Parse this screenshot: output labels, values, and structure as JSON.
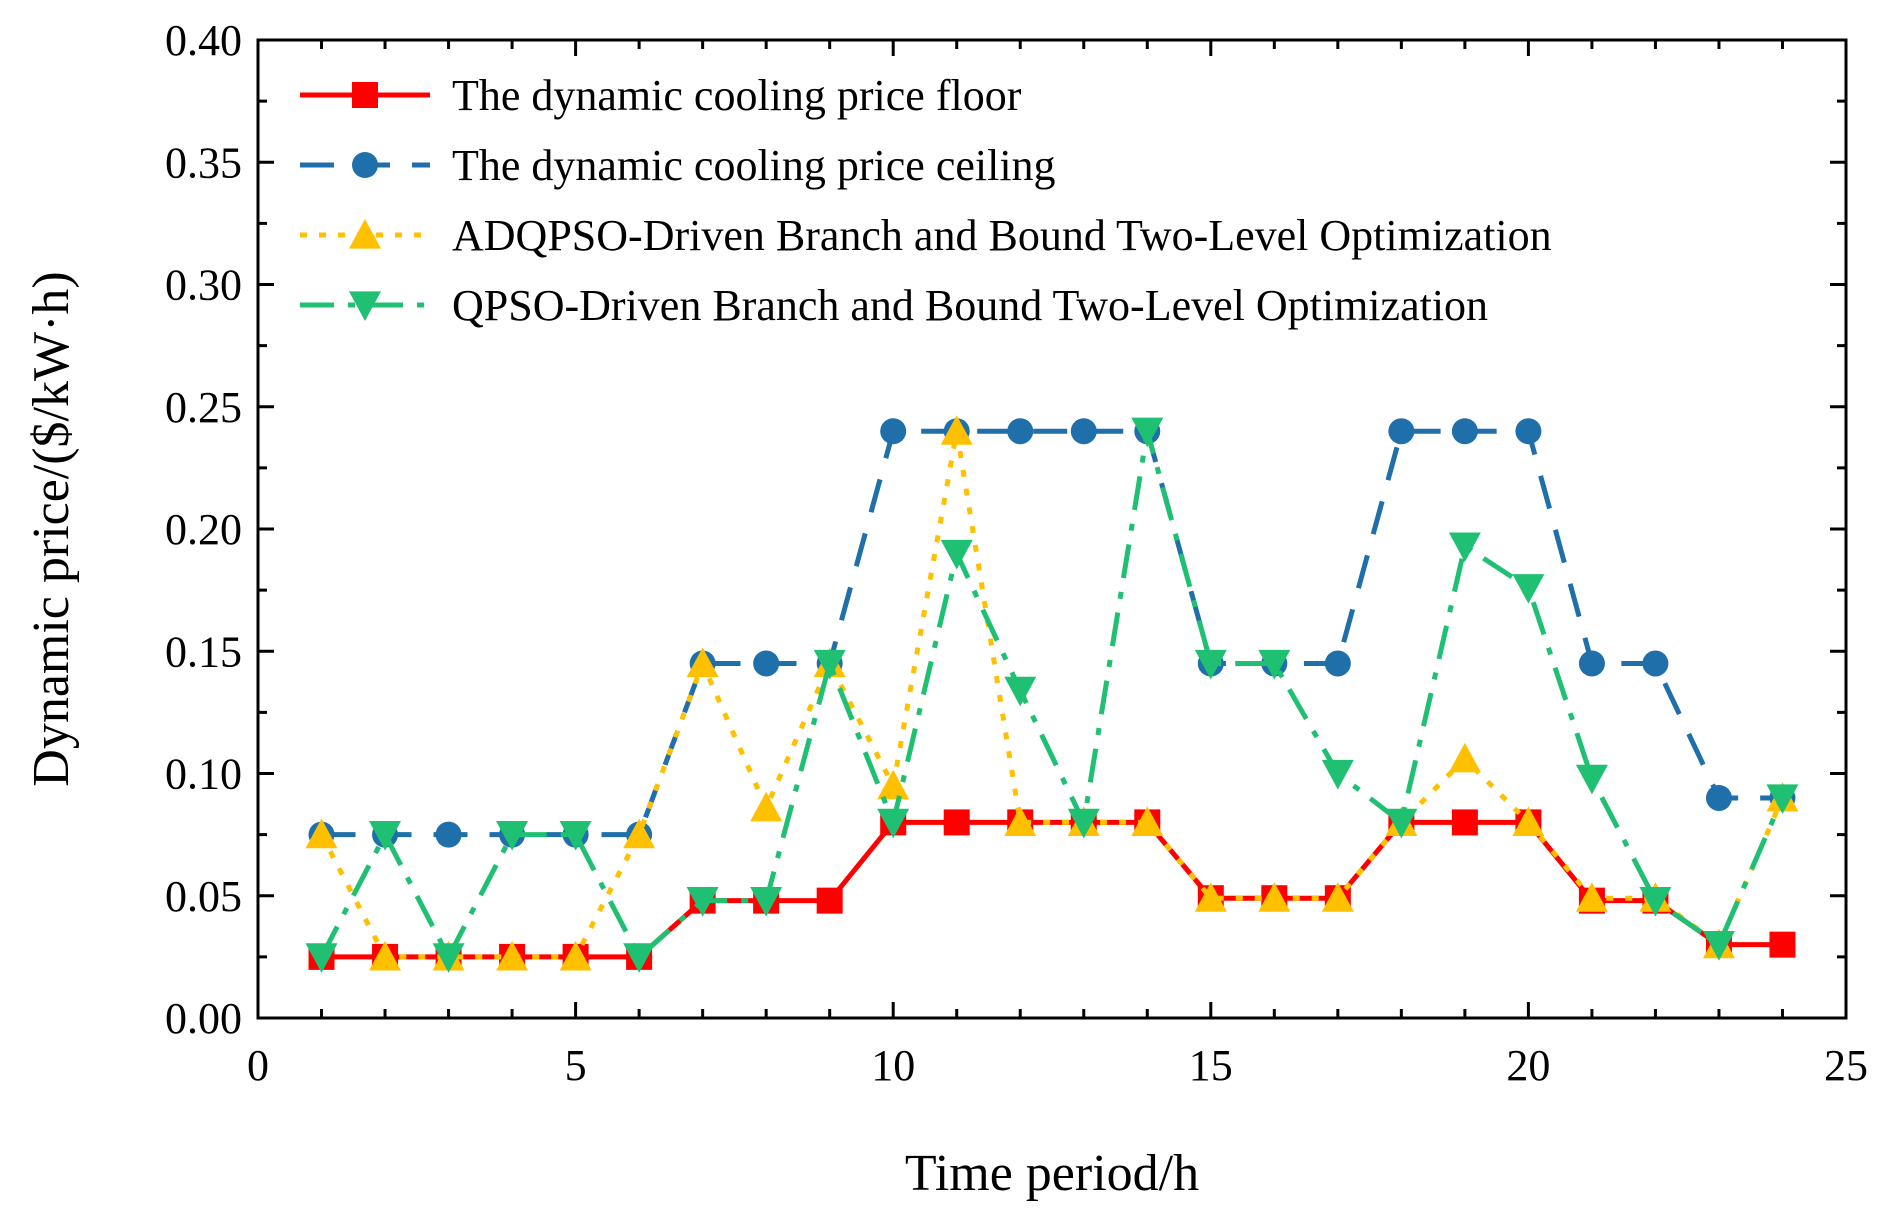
{
  "chart_data": {
    "type": "line",
    "xlabel": "Time period/h",
    "ylabel": "Dynamic price/($/kW·h)",
    "xlim": [
      0,
      25
    ],
    "ylim": [
      0,
      0.4
    ],
    "x_ticks": [
      "0",
      "5",
      "10",
      "15",
      "20",
      "25"
    ],
    "y_ticks": [
      "0.00",
      "0.05",
      "0.10",
      "0.15",
      "0.20",
      "0.25",
      "0.30",
      "0.35",
      "0.40"
    ],
    "x_tick_values": [
      0,
      5,
      10,
      15,
      20,
      25
    ],
    "y_tick_values": [
      0,
      0.05,
      0.1,
      0.15,
      0.2,
      0.25,
      0.3,
      0.35,
      0.4
    ],
    "grid": false,
    "legend_position": "top-left",
    "x": [
      1,
      2,
      3,
      4,
      5,
      6,
      7,
      8,
      9,
      10,
      11,
      12,
      13,
      14,
      15,
      16,
      17,
      18,
      19,
      20,
      21,
      22,
      23,
      24
    ],
    "series": [
      {
        "name": "The dynamic cooling price floor",
        "color": "#ff0000",
        "line_style": "solid",
        "marker": "square",
        "values": [
          0.025,
          0.025,
          0.025,
          0.025,
          0.025,
          0.025,
          0.048,
          0.048,
          0.048,
          0.08,
          0.08,
          0.08,
          0.08,
          0.08,
          0.049,
          0.049,
          0.049,
          0.08,
          0.08,
          0.08,
          0.048,
          0.048,
          0.03,
          0.03
        ]
      },
      {
        "name": "The dynamic cooling price ceiling",
        "color": "#1f6fab",
        "line_style": "dashed",
        "marker": "circle",
        "values": [
          0.075,
          0.075,
          0.075,
          0.075,
          0.075,
          0.075,
          0.145,
          0.145,
          0.145,
          0.24,
          0.24,
          0.24,
          0.24,
          0.24,
          0.145,
          0.145,
          0.145,
          0.24,
          0.24,
          0.24,
          0.145,
          0.145,
          0.09,
          0.09
        ]
      },
      {
        "name": "ADQPSO-Driven Branch and Bound Two-Level Optimization",
        "color": "#ffc000",
        "line_style": "dotted",
        "marker": "triangle-up",
        "values": [
          0.075,
          0.025,
          0.025,
          0.025,
          0.025,
          0.075,
          0.145,
          0.086,
          0.145,
          0.095,
          0.24,
          0.08,
          0.08,
          0.08,
          0.049,
          0.049,
          0.049,
          0.08,
          0.106,
          0.08,
          0.049,
          0.049,
          0.03,
          0.09
        ]
      },
      {
        "name": "QPSO-Driven Branch and Bound Two-Level Optimization",
        "color": "#20c073",
        "line_style": "dashdot",
        "marker": "triangle-down",
        "values": [
          0.025,
          0.075,
          0.025,
          0.075,
          0.075,
          0.025,
          0.048,
          0.048,
          0.145,
          0.08,
          0.19,
          0.134,
          0.08,
          0.24,
          0.145,
          0.145,
          0.1,
          0.08,
          0.193,
          0.176,
          0.098,
          0.048,
          0.03,
          0.09
        ]
      }
    ]
  }
}
